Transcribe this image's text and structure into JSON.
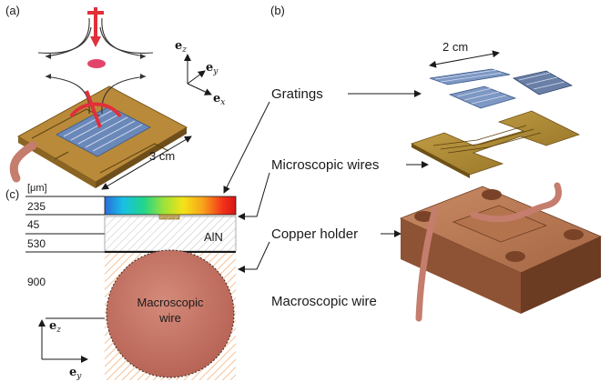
{
  "panels": {
    "a": "(a)",
    "b": "(b)",
    "c": "(c)"
  },
  "panel_a": {
    "dimension": "3 cm",
    "axes": {
      "z": "e",
      "z_sub": "z",
      "y": "e",
      "y_sub": "y",
      "x": "e",
      "x_sub": "x"
    }
  },
  "panel_b": {
    "grating_dimension": "2 cm",
    "labels": {
      "gratings": "Gratings",
      "microscopic_wires": "Microscopic wires",
      "copper_holder": "Copper holder",
      "macroscopic_wire": "Macroscopic wire"
    }
  },
  "panel_c": {
    "unit": "[μm]",
    "layers": [
      {
        "thickness": "235"
      },
      {
        "thickness": "45"
      },
      {
        "thickness": "530"
      },
      {
        "thickness": "900"
      }
    ],
    "substrate_label": "AlN",
    "wire_label_line1": "Macroscopic",
    "wire_label_line2": "wire",
    "axes": {
      "z": "e",
      "z_sub": "z",
      "y": "e",
      "y_sub": "y"
    },
    "colorbar_colors": [
      "#2c6bd9",
      "#18c0e6",
      "#22d58a",
      "#9be23a",
      "#f4e317",
      "#f8a21b",
      "#f2331a",
      "#d81515"
    ]
  }
}
